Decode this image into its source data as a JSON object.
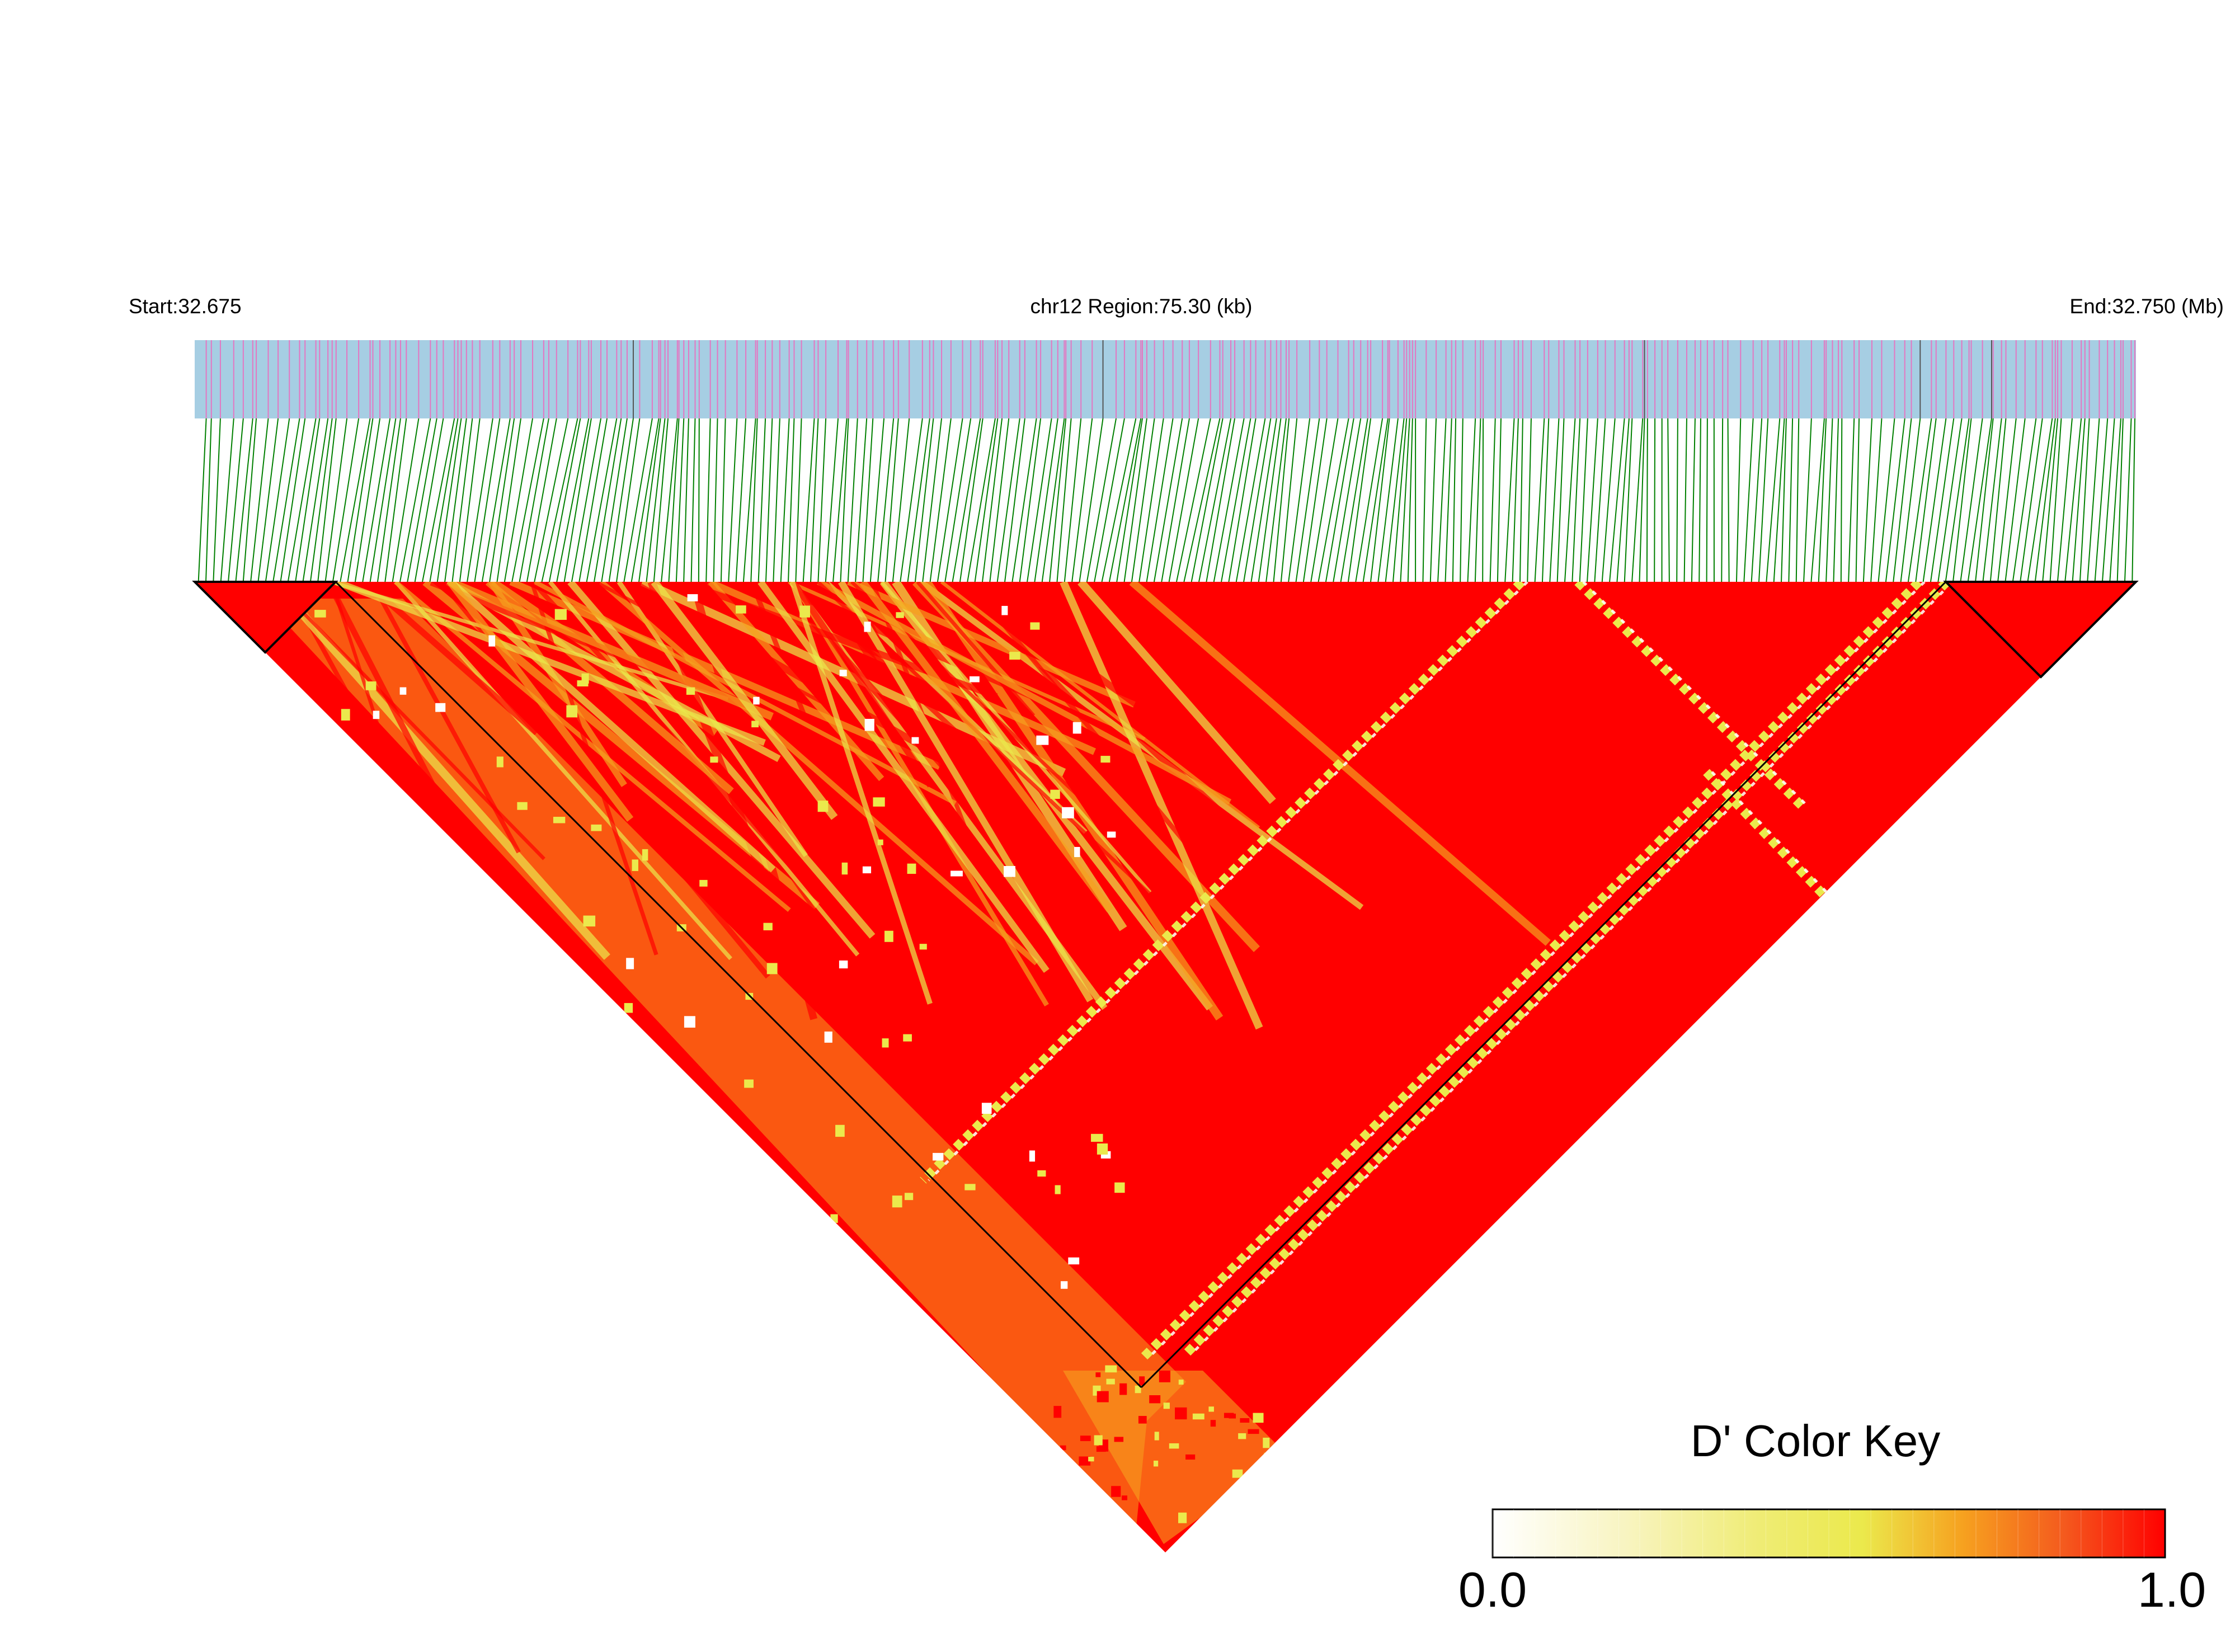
{
  "header": {
    "start_label": "Start:32.675",
    "region_label": "chr12 Region:75.30 (kb)",
    "end_label": "End:32.750 (Mb)"
  },
  "colors": {
    "track_background": "#a6cee3",
    "snp_tick": "#e377c2",
    "snp_tick_dark": "#555555",
    "connector_line": "#008000",
    "ld_high": "#ff0000",
    "ld_mid": "#f6a11f",
    "ld_low_mid": "#ebe94c",
    "ld_low": "#ffffff",
    "block_outline": "#000000"
  },
  "color_key": {
    "title": "D' Color Key",
    "min_label": "0.0",
    "max_label": "1.0",
    "gradient_stops": [
      "#ffffff",
      "#f4f0a0",
      "#ebe94c",
      "#f6a11f",
      "#f45a1e",
      "#ff0000"
    ]
  }
}
